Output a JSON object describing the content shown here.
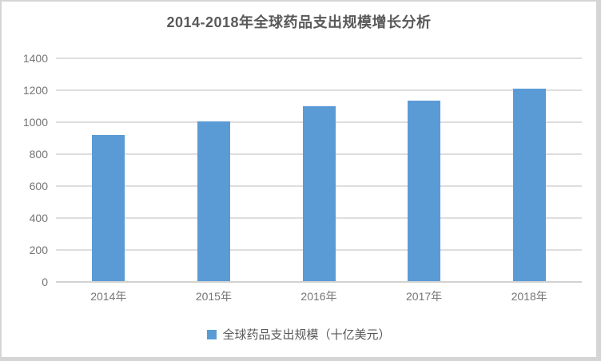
{
  "page": {
    "background": "#ffffff",
    "frame_border_color": "#d5d5d5"
  },
  "chart_data": {
    "type": "bar",
    "title": "2014-2018年全球药品支出规模增长分析",
    "categories": [
      "2014年",
      "2015年",
      "2016年",
      "2017年",
      "2018年"
    ],
    "values": [
      920,
      1005,
      1100,
      1135,
      1210
    ],
    "series_name": "全球药品支出规模（十亿美元）",
    "xlabel": "",
    "ylabel": "",
    "ylim": [
      0,
      1400
    ],
    "yticks": [
      0,
      200,
      400,
      600,
      800,
      1000,
      1200,
      1400
    ],
    "grid": true,
    "legend_position": "bottom",
    "colors": {
      "bar": "#5B9BD5",
      "gridline": "#DEDEDE",
      "axis_line": "#D2D2D2",
      "title_text": "#595959",
      "tick_text": "#757575",
      "legend_text": "#595959"
    }
  }
}
